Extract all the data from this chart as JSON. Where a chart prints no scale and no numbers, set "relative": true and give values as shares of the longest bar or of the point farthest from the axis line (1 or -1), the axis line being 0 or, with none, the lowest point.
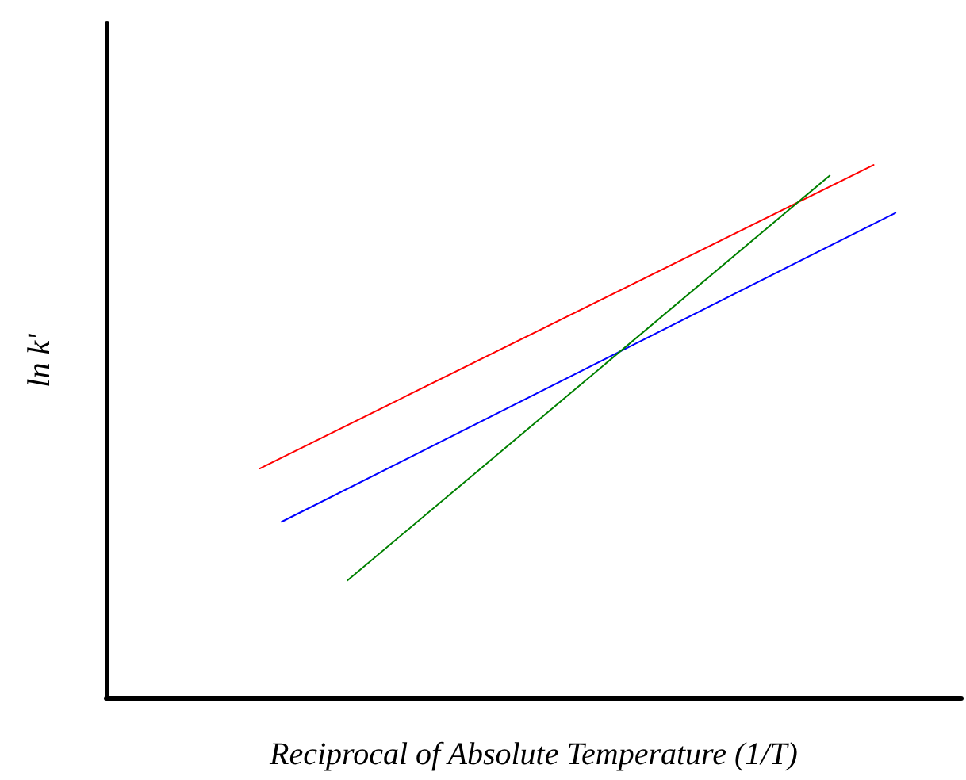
{
  "chart_data": {
    "type": "line",
    "relative": true,
    "marker": "none",
    "xlabel": "Reciprocal of Absolute Temperature (1/T)",
    "ylabel": "ln k'",
    "categories": [
      null,
      null,
      null,
      null,
      null,
      null,
      null,
      null,
      null,
      null,
      null,
      null,
      null,
      null,
      null,
      null,
      null,
      null,
      null,
      null,
      null,
      null,
      null,
      null,
      null,
      null,
      null,
      null,
      null,
      null,
      null,
      null,
      null,
      null,
      null,
      null,
      null,
      null,
      null,
      null
    ],
    "series": [
      {
        "color": "#ff0000",
        "values": [
          null,
          null,
          null,
          null,
          null,
          null,
          null,
          0.43,
          null,
          null,
          null,
          null,
          null,
          null,
          null,
          null,
          null,
          null,
          null,
          null,
          null,
          null,
          null,
          null,
          null,
          null,
          null,
          null,
          null,
          null,
          null,
          null,
          null,
          null,
          null,
          1,
          null,
          null,
          null,
          null
        ]
      },
      {
        "color": "#0000ff",
        "values": [
          null,
          null,
          null,
          null,
          null,
          null,
          null,
          null,
          0.33,
          null,
          null,
          null,
          null,
          null,
          null,
          null,
          null,
          null,
          null,
          null,
          null,
          null,
          null,
          null,
          null,
          null,
          null,
          null,
          null,
          null,
          null,
          null,
          null,
          null,
          null,
          null,
          0.91,
          null,
          null,
          null
        ]
      },
      {
        "color": "#008000",
        "values": [
          null,
          null,
          null,
          null,
          null,
          null,
          null,
          null,
          null,
          null,
          null,
          0.22,
          null,
          null,
          null,
          null,
          null,
          null,
          null,
          null,
          null,
          null,
          null,
          null,
          null,
          null,
          null,
          null,
          null,
          null,
          null,
          null,
          null,
          0.98,
          null,
          null,
          null,
          null,
          null,
          null
        ]
      }
    ]
  }
}
